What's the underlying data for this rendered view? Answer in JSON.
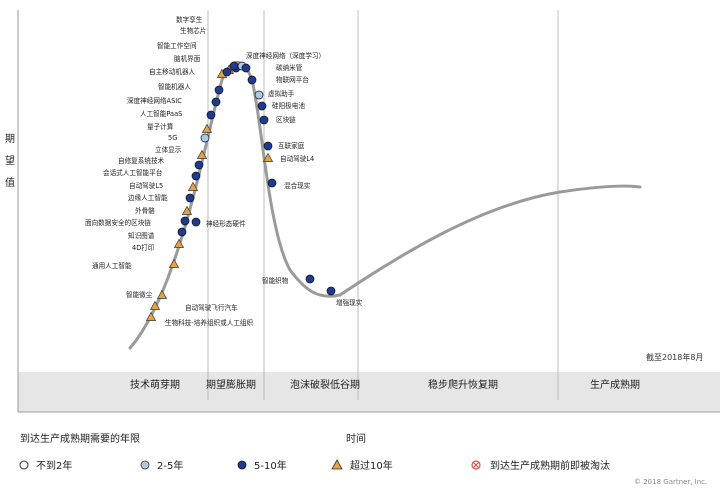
{
  "chart": {
    "y_axis_label": [
      "期",
      "望",
      "值"
    ],
    "x_axis_label": "时间",
    "as_of": "截至2018年8月",
    "copyright": "© 2018 Gartner, Inc.",
    "phases": [
      "技术萌芽期",
      "期望膨胀期",
      "泡沫破裂低谷期",
      "稳步爬升恢复期",
      "生产成熟期"
    ]
  },
  "legend": {
    "title": "到达生产成熟期需要的年限",
    "items": [
      {
        "label": "不到2年",
        "marker": "open-circle"
      },
      {
        "label": "2-5年",
        "marker": "light-blue-circle"
      },
      {
        "label": "5-10年",
        "marker": "dark-blue-circle"
      },
      {
        "label": "超过10年",
        "marker": "triangle"
      },
      {
        "label": "到达生产成熟期前即被淘汰",
        "marker": "crossed-circle"
      }
    ]
  },
  "colors": {
    "curve": "#9a9a9a",
    "dark_blue": "#1f3a93",
    "light_blue": "#a9cbe8",
    "triangle": "#e8a33c",
    "band": "#e8e8e8",
    "divider": "#bbbbbb",
    "eliminated": "#d9534f"
  },
  "technologies": [
    {
      "name": "数字孪生",
      "marker": "dark"
    },
    {
      "name": "生物芯片",
      "marker": "tri"
    },
    {
      "name": "智能工作空间",
      "marker": "dark"
    },
    {
      "name": "脑机界面",
      "marker": "tri"
    },
    {
      "name": "自主移动机器人",
      "marker": "dark"
    },
    {
      "name": "智能机器人",
      "marker": "dark"
    },
    {
      "name": "深度神经网络ASIC",
      "marker": "dark"
    },
    {
      "name": "人工智能PaaS",
      "marker": "dark"
    },
    {
      "name": "量子计算",
      "marker": "tri"
    },
    {
      "name": "5G",
      "marker": "light"
    },
    {
      "name": "立体显示",
      "marker": "tri"
    },
    {
      "name": "自修复系统技术",
      "marker": "dark"
    },
    {
      "name": "会话式人工智能平台",
      "marker": "dark"
    },
    {
      "name": "自动驾驶L5",
      "marker": "tri"
    },
    {
      "name": "边缘人工智能",
      "marker": "dark"
    },
    {
      "name": "外骨骼",
      "marker": "tri"
    },
    {
      "name": "面向数据安全的区块链",
      "marker": "dark"
    },
    {
      "name": "知识图谱",
      "marker": "dark"
    },
    {
      "name": "4D打印",
      "marker": "tri"
    },
    {
      "name": "通用人工智能",
      "marker": "tri"
    },
    {
      "name": "智能微尘",
      "marker": "tri"
    },
    {
      "name": "生物科技-培养组织或人工组织",
      "marker": "tri"
    },
    {
      "name": "自动驾驶飞行汽车",
      "marker": "tri"
    },
    {
      "name": "神经形态硬件",
      "marker": "dark"
    },
    {
      "name": "深度神经网络（深度学习）",
      "marker": "light"
    },
    {
      "name": "碳纳米管",
      "marker": "dark"
    },
    {
      "name": "物联网平台",
      "marker": "dark"
    },
    {
      "name": "虚拟助手",
      "marker": "light"
    },
    {
      "name": "硅阳极电池",
      "marker": "dark"
    },
    {
      "name": "区块链",
      "marker": "dark"
    },
    {
      "name": "互联家庭",
      "marker": "dark"
    },
    {
      "name": "自动驾驶L4",
      "marker": "tri"
    },
    {
      "name": "混合现实",
      "marker": "dark"
    },
    {
      "name": "智能织物",
      "marker": "dark"
    },
    {
      "name": "增强现实",
      "marker": "dark"
    }
  ]
}
